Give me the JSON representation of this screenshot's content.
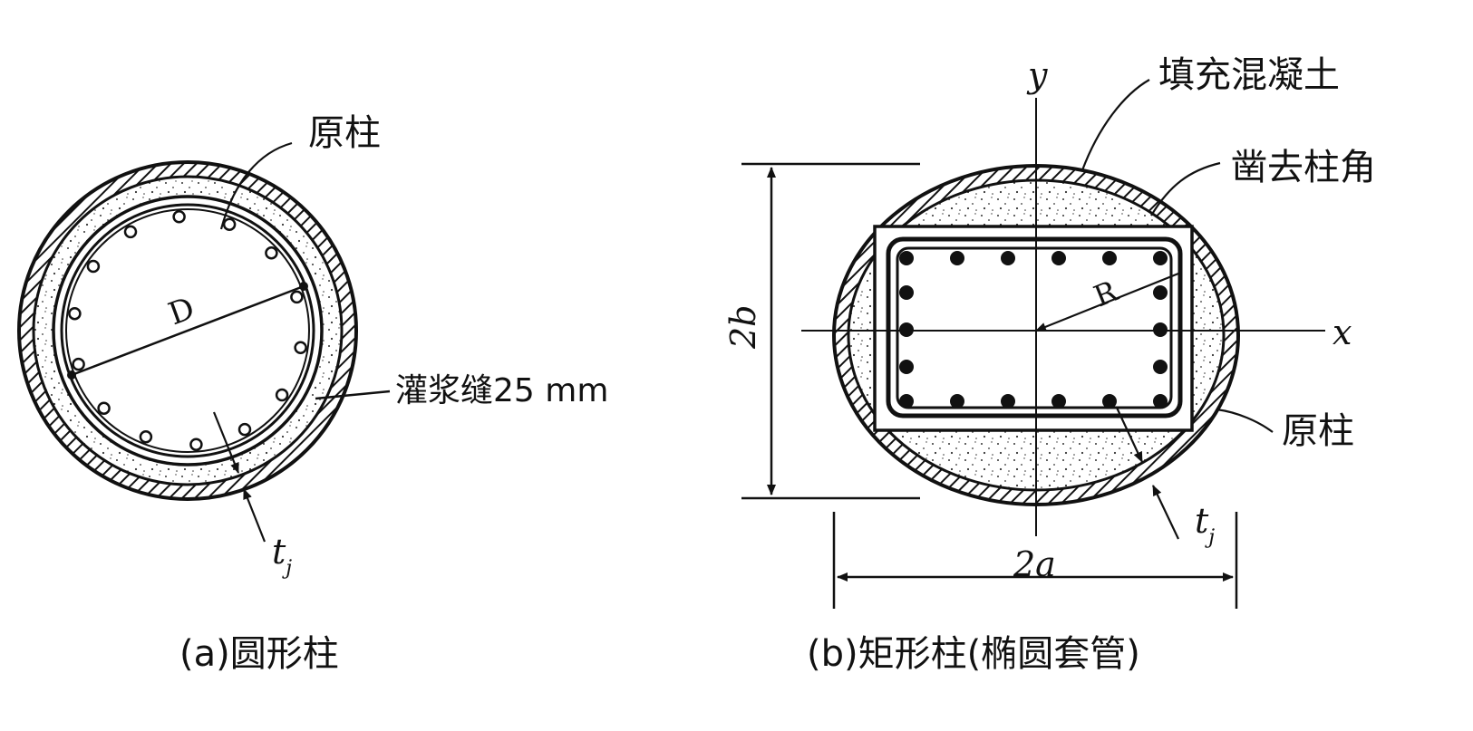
{
  "figure_a": {
    "label_original_column": "原柱",
    "label_diameter": "D",
    "label_grout_gap": "灌浆缝25 mm",
    "label_thickness_main": "t",
    "label_thickness_sub": "j",
    "caption": "(a)圆形柱"
  },
  "figure_b": {
    "label_y_axis": "y",
    "label_x_axis": "x",
    "label_filled_concrete": "填充混凝土",
    "label_chiseled_corner": "凿去柱角",
    "label_original_column": "原柱",
    "label_radius": "R",
    "label_height": "2b",
    "label_width": "2a",
    "label_thickness_main": "t",
    "label_thickness_sub": "j",
    "caption": "(b)矩形柱(椭圆套管)"
  },
  "colors": {
    "ink": "#111111",
    "background": "#ffffff"
  }
}
